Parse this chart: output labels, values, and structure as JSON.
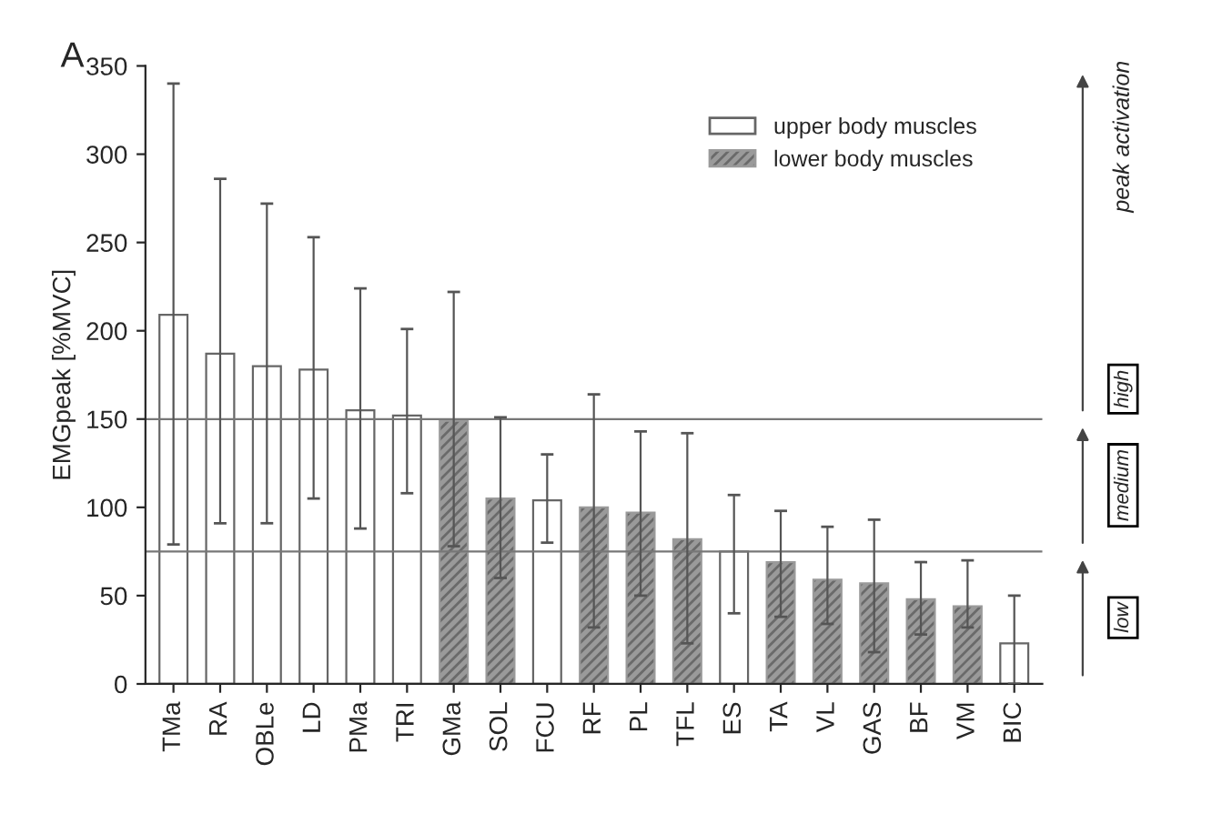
{
  "chart_data": {
    "type": "bar",
    "ylabel": "EMGpeak [%MVC]",
    "categories": [
      "TMa",
      "RA",
      "OBLe",
      "LD",
      "PMa",
      "TRI",
      "GMa",
      "SOL",
      "FCU",
      "RF",
      "PL",
      "TFL",
      "ES",
      "TA",
      "VL",
      "GAS",
      "BF",
      "VM",
      "BIC"
    ],
    "series": [
      {
        "name": "upper body muscles",
        "color": "#ffffff",
        "values": [
          209,
          187,
          180,
          178,
          155,
          152,
          null,
          null,
          104,
          null,
          null,
          null,
          75,
          null,
          null,
          null,
          null,
          null,
          23
        ],
        "errors": [
          [
            79,
            340
          ],
          [
            91,
            286
          ],
          [
            91,
            272
          ],
          [
            105,
            253
          ],
          [
            88,
            224
          ],
          [
            108,
            201
          ],
          null,
          null,
          [
            80,
            130
          ],
          null,
          null,
          null,
          [
            40,
            107
          ],
          null,
          null,
          null,
          null,
          null,
          [
            0,
            50
          ]
        ]
      },
      {
        "name": "lower body muscles",
        "color": "#9a9a9a",
        "values": [
          null,
          null,
          null,
          null,
          null,
          null,
          149,
          105,
          null,
          100,
          97,
          82,
          null,
          69,
          59,
          57,
          48,
          44,
          null
        ],
        "errors": [
          null,
          null,
          null,
          null,
          null,
          null,
          [
            78,
            222
          ],
          [
            60,
            151
          ],
          null,
          [
            32,
            164
          ],
          [
            50,
            143
          ],
          [
            23,
            142
          ],
          null,
          [
            38,
            98
          ],
          [
            34,
            89
          ],
          [
            18,
            93
          ],
          [
            28,
            69
          ],
          [
            32,
            70
          ],
          null
        ]
      }
    ],
    "ylim": [
      0,
      350
    ],
    "yticks": [
      0,
      50,
      100,
      150,
      200,
      250,
      300,
      350
    ],
    "ref_lines": [
      {
        "axis": "y",
        "value": 150,
        "color": "#777777"
      },
      {
        "axis": "y",
        "value": 75,
        "color": "#777777"
      }
    ],
    "annotations": [
      "A",
      "peak activation",
      "high",
      "medium",
      "low"
    ],
    "legend": "top right",
    "grid": false
  }
}
